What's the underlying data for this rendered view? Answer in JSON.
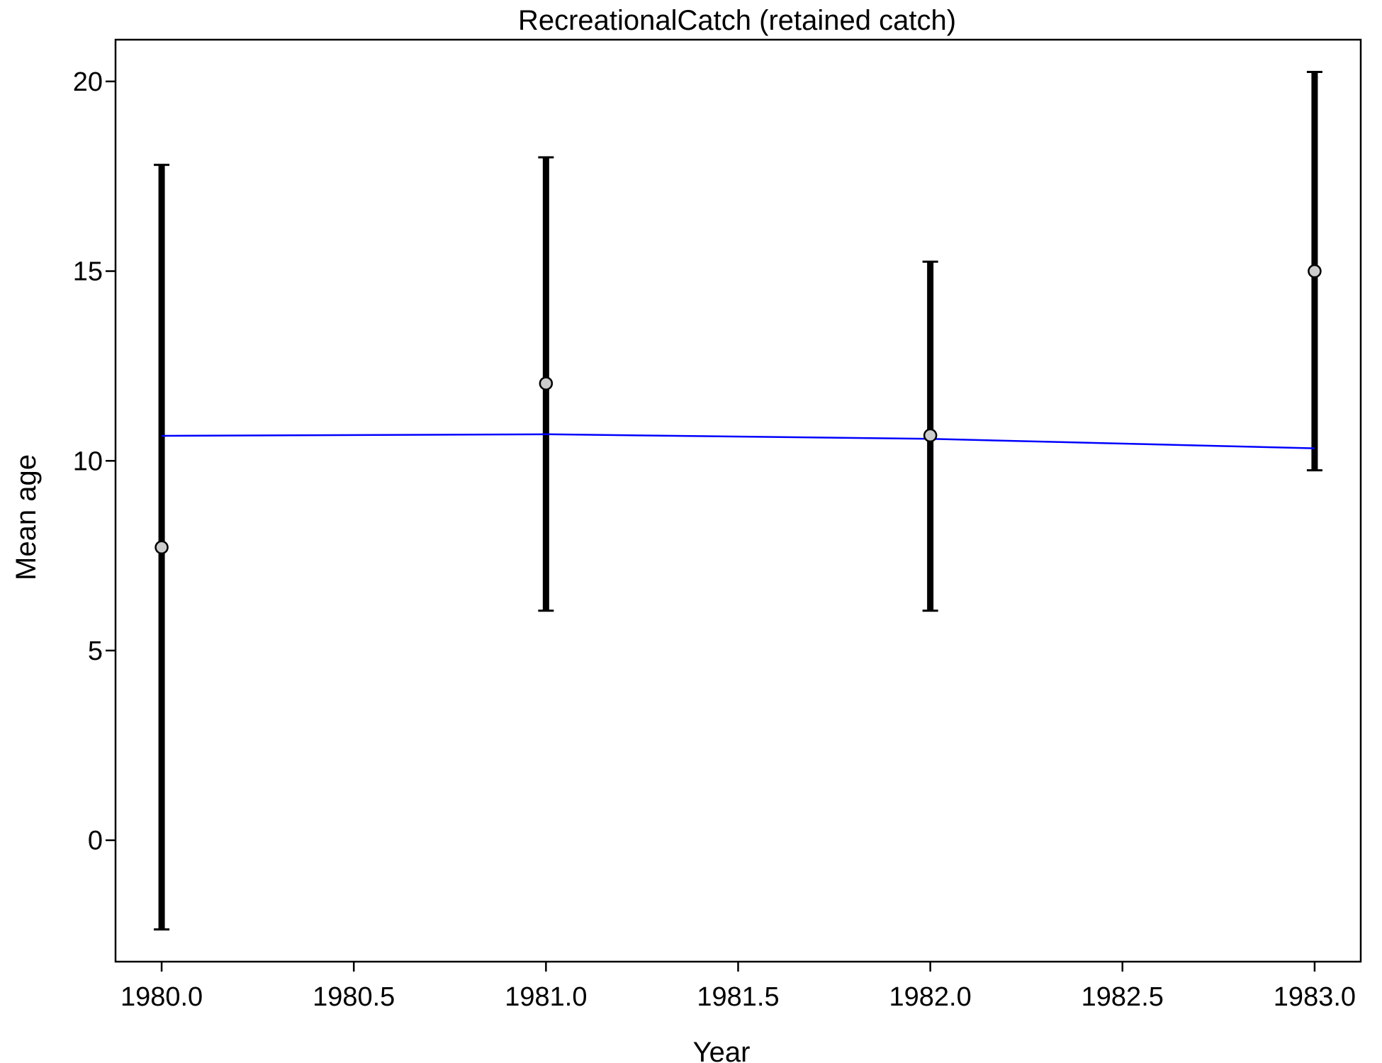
{
  "chart_data": {
    "type": "scatter",
    "title": "RecreationalCatch (retained catch)",
    "xlabel": "Year",
    "ylabel": "Mean age",
    "xlim": [
      1979.88,
      1983.12
    ],
    "ylim": [
      -3.2,
      21.1
    ],
    "xticks": [
      "1980.0",
      "1980.5",
      "1981.0",
      "1981.5",
      "1982.0",
      "1982.5",
      "1983.0"
    ],
    "yticks": [
      "0",
      "5",
      "10",
      "15",
      "20"
    ],
    "grid": false,
    "legend": "none",
    "series": [
      {
        "kind": "observed",
        "x": [
          1980,
          1981,
          1982,
          1983
        ],
        "y": [
          7.72,
          12.04,
          10.67,
          15.0
        ],
        "lower": [
          -2.35,
          6.05,
          6.05,
          9.75
        ],
        "upper": [
          17.8,
          18.0,
          15.25,
          20.25
        ],
        "point_color": "#cccccc",
        "errorbar_color": "#000000"
      },
      {
        "kind": "expected",
        "x": [
          1980,
          1981,
          1982,
          1983
        ],
        "y": [
          10.66,
          10.7,
          10.58,
          10.33
        ],
        "color": "#0000ff"
      }
    ]
  }
}
